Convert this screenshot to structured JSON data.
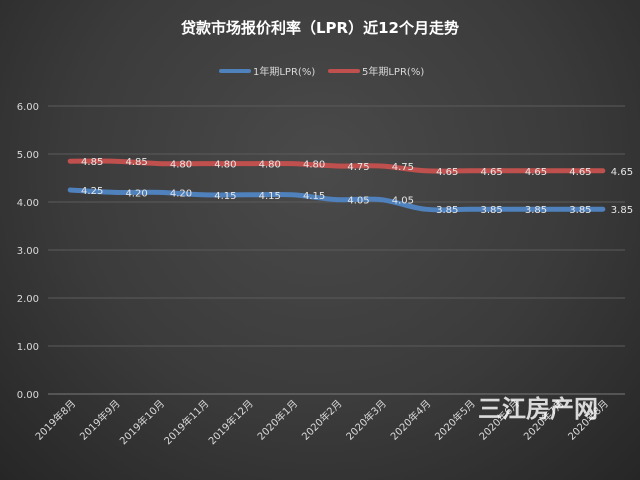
{
  "chart_data": {
    "type": "line",
    "title": "贷款市场报价利率（LPR）近12个月走势",
    "categories": [
      "2019年8月",
      "2019年9月",
      "2019年10月",
      "2019年11月",
      "2019年12月",
      "2020年1月",
      "2020年2月",
      "2020年3月",
      "2020年4月",
      "2020年5月",
      "2020年6月",
      "2020年7月",
      "2020年8月"
    ],
    "series": [
      {
        "name": "1年期LPR(%)",
        "color": "#4f81bd",
        "values": [
          4.25,
          4.2,
          4.2,
          4.15,
          4.15,
          4.15,
          4.05,
          4.05,
          3.85,
          3.85,
          3.85,
          3.85,
          3.85
        ],
        "labels": [
          "4.25",
          "4.20",
          "4.20",
          "4.15",
          "4.15",
          "4.15",
          "4.05",
          "4.05",
          "3.85",
          "3.85",
          "3.85",
          "3.85",
          "3.85"
        ]
      },
      {
        "name": "5年期LPR(%)",
        "color": "#c0504d",
        "values": [
          4.85,
          4.85,
          4.8,
          4.8,
          4.8,
          4.8,
          4.75,
          4.75,
          4.65,
          4.65,
          4.65,
          4.65,
          4.65
        ],
        "labels": [
          "4.85",
          "4.85",
          "4.80",
          "4.80",
          "4.80",
          "4.80",
          "4.75",
          "4.75",
          "4.65",
          "4.65",
          "4.65",
          "4.65",
          "4.65"
        ]
      }
    ],
    "yticks": [
      "0.00",
      "1.00",
      "2.00",
      "3.00",
      "4.00",
      "5.00",
      "6.00"
    ],
    "ylim": [
      0,
      6
    ],
    "grid": true,
    "legend_position": "top-center"
  },
  "watermark": "三江房产网"
}
